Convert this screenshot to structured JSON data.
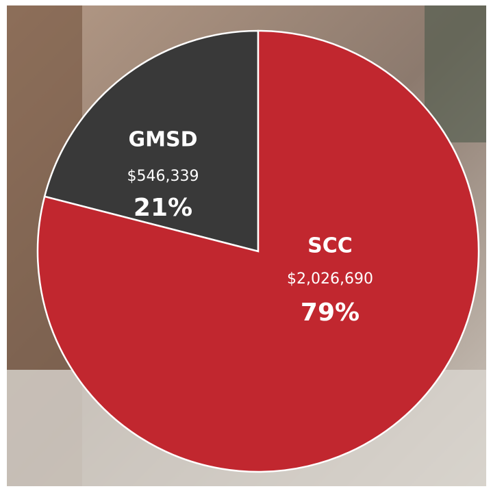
{
  "chart_data": {
    "type": "pie",
    "categories": [
      "GMSD",
      "SCC"
    ],
    "values": [
      21,
      79
    ],
    "value_labels": [
      "21%",
      "79%"
    ],
    "amounts": [
      546339,
      2026690
    ],
    "amount_labels": [
      "$546,339",
      "$2,026,690"
    ],
    "colors": [
      "#393939",
      "#c1272f"
    ]
  }
}
